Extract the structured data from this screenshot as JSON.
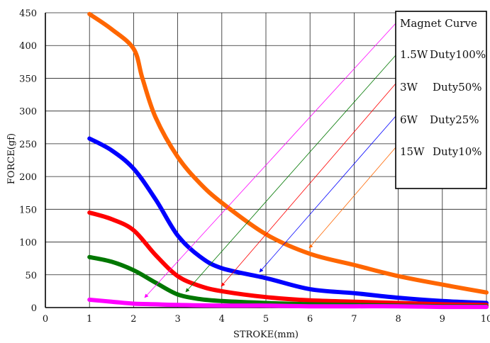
{
  "chart_data": {
    "type": "line",
    "xlabel": "STROKE(mm)",
    "ylabel": "FORCE(gf)",
    "xlim": [
      0,
      10
    ],
    "ylim": [
      0,
      450
    ],
    "x_ticks": [
      "0",
      "1",
      "2",
      "3",
      "4",
      "5",
      "6",
      "7",
      "8",
      "9",
      "10"
    ],
    "y_ticks": [
      "0",
      "50",
      "100",
      "150",
      "200",
      "250",
      "300",
      "350",
      "400",
      "450"
    ],
    "grid": true,
    "legend_position": "top-right",
    "legend_title": "Magnet Curve",
    "legend_watts": [
      "1.5W",
      "3W",
      "6W",
      "15W"
    ],
    "legend_duties": [
      "Duty100%",
      "Duty50%",
      "Duty25%",
      "Duty10%"
    ],
    "series": [
      {
        "name": "15W Duty10%",
        "color": "#ff6600",
        "x": [
          1,
          1.5,
          2,
          2.2,
          2.5,
          3,
          3.5,
          4,
          5,
          6,
          7,
          8,
          9,
          10
        ],
        "y": [
          448,
          425,
          395,
          350,
          290,
          230,
          190,
          160,
          112,
          82,
          65,
          48,
          35,
          23
        ]
      },
      {
        "name": "6W Duty25%",
        "color": "#0000ff",
        "x": [
          1,
          1.5,
          2,
          2.5,
          3,
          3.5,
          4,
          5,
          6,
          7,
          8,
          9,
          10
        ],
        "y": [
          258,
          240,
          212,
          165,
          110,
          78,
          60,
          45,
          28,
          22,
          15,
          10,
          7
        ]
      },
      {
        "name": "3W Duty50%",
        "color": "#ff0000",
        "x": [
          1,
          1.5,
          2,
          2.5,
          3,
          3.5,
          4,
          5,
          6,
          7,
          8,
          9,
          10
        ],
        "y": [
          145,
          135,
          118,
          80,
          48,
          33,
          25,
          16,
          11,
          9,
          7,
          5,
          4
        ]
      },
      {
        "name": "1.5W Duty100%",
        "color": "#007700",
        "x": [
          1,
          1.5,
          2,
          2.5,
          3,
          3.5,
          4,
          5,
          6,
          7,
          8,
          9,
          10
        ],
        "y": [
          77,
          70,
          57,
          38,
          20,
          13,
          10,
          7,
          5,
          4,
          3,
          2,
          2
        ]
      },
      {
        "name": "Magnet Curve",
        "color": "#ff00ff",
        "x": [
          1,
          1.5,
          2,
          2.5,
          3,
          4,
          5,
          6,
          7,
          8,
          9,
          10
        ],
        "y": [
          12,
          9,
          6,
          5,
          4,
          3,
          3,
          2,
          2,
          2,
          1,
          1
        ]
      }
    ]
  }
}
